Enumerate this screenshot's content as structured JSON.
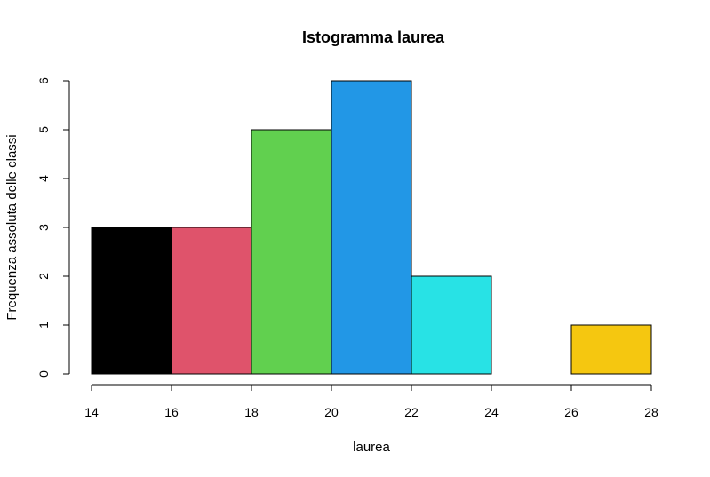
{
  "chart_data": {
    "type": "bar",
    "title": "Istogramma laurea",
    "xlabel": "laurea",
    "ylabel": "Frequenza assoluta delle classi",
    "bins": [
      {
        "from": 14,
        "to": 16,
        "count": 3,
        "color": "#000000"
      },
      {
        "from": 16,
        "to": 18,
        "count": 3,
        "color": "#DF536B"
      },
      {
        "from": 18,
        "to": 20,
        "count": 5,
        "color": "#61D04F"
      },
      {
        "from": 20,
        "to": 22,
        "count": 6,
        "color": "#2297E6"
      },
      {
        "from": 22,
        "to": 24,
        "count": 2,
        "color": "#28E2E5"
      },
      {
        "from": 24,
        "to": 26,
        "count": 0,
        "color": "#CD0BBC"
      },
      {
        "from": 26,
        "to": 28,
        "count": 1,
        "color": "#F5C710"
      }
    ],
    "xticks": [
      "14",
      "16",
      "18",
      "20",
      "22",
      "24",
      "26",
      "28"
    ],
    "yticks": [
      "0",
      "1",
      "2",
      "3",
      "4",
      "5",
      "6"
    ],
    "xlim": [
      14,
      28
    ],
    "ylim": [
      0,
      6
    ],
    "grid": false,
    "legend": "none"
  }
}
